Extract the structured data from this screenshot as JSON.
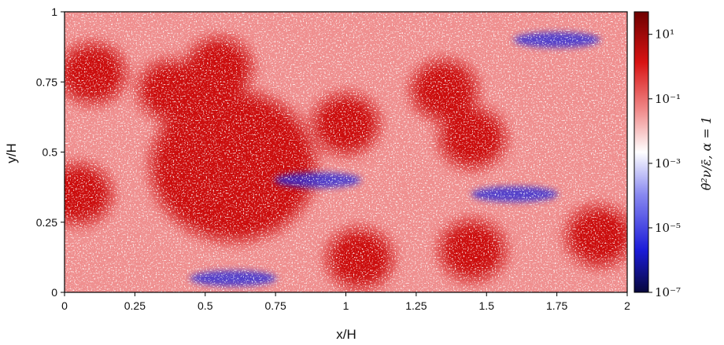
{
  "chart_data": {
    "type": "heatmap",
    "title": "",
    "xlabel": "x/H",
    "ylabel": "y/H",
    "xlim": [
      0,
      2
    ],
    "ylim": [
      0,
      1
    ],
    "x_ticks": [
      "0",
      "0.25",
      "0.5",
      "0.75",
      "1",
      "1.25",
      "1.5",
      "1.75",
      "2"
    ],
    "y_ticks": [
      "0",
      "0.25",
      "0.5",
      "0.75",
      "1"
    ],
    "colorbar": {
      "label": "θ̇²ν/ε̄, α = 1",
      "scale": "log",
      "range": [
        1e-07,
        50
      ],
      "ticks": [
        "10⁻⁷",
        "10⁻⁵",
        "10⁻³",
        "10⁻¹",
        "10¹"
      ],
      "colormap": [
        "#08083c",
        "#1b1bd8",
        "#8a8af0",
        "#ffffff",
        "#f08a8a",
        "#d81414",
        "#6e0000"
      ]
    },
    "features": [
      {
        "kind": "high",
        "x": 0.6,
        "y": 0.45
      },
      {
        "kind": "high",
        "x": 0.1,
        "y": 0.78
      },
      {
        "kind": "high",
        "x": 0.38,
        "y": 0.72
      },
      {
        "kind": "high",
        "x": 0.55,
        "y": 0.8
      },
      {
        "kind": "high",
        "x": 1.0,
        "y": 0.6
      },
      {
        "kind": "high",
        "x": 1.35,
        "y": 0.72
      },
      {
        "kind": "high",
        "x": 1.45,
        "y": 0.55
      },
      {
        "kind": "high",
        "x": 0.05,
        "y": 0.35
      },
      {
        "kind": "high",
        "x": 1.45,
        "y": 0.15
      },
      {
        "kind": "high",
        "x": 1.9,
        "y": 0.2
      },
      {
        "kind": "high",
        "x": 1.05,
        "y": 0.12
      },
      {
        "kind": "low",
        "x": 0.6,
        "y": 0.05
      },
      {
        "kind": "low",
        "x": 1.75,
        "y": 0.9
      },
      {
        "kind": "low",
        "x": 0.9,
        "y": 0.4
      },
      {
        "kind": "low",
        "x": 1.6,
        "y": 0.35
      }
    ]
  }
}
